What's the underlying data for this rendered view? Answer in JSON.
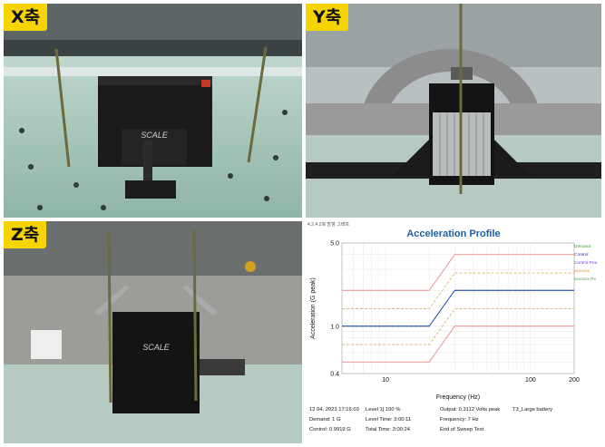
{
  "panels": {
    "x": {
      "label": "X축"
    },
    "y": {
      "label": "Y축"
    },
    "z": {
      "label": "Z축"
    }
  },
  "photo": {
    "logo_text": "SCALE"
  },
  "chart": {
    "header_faint": "4.2.4 Z축 방향 그래프",
    "title": "Acceleration Profile",
    "legend": [
      {
        "label": "Demand",
        "color": "#2ca02c"
      },
      {
        "label": "Control",
        "color": "#1f3fbf"
      },
      {
        "label": "Control Pea",
        "color": "#7c3aed"
      },
      {
        "label": "xxxxxxx",
        "color": "#d98c3c"
      },
      {
        "label": "xxxxxxx Pe",
        "color": "#5aa05a"
      }
    ],
    "status_lines": {
      "date": "12 04, 2023 17:16:03",
      "level": "Level 1] 100 %",
      "output": "Output: 0.3112 Volts peak",
      "test": "T3_Large battery",
      "demand": "Demand: 1 G",
      "level_time": "Level Time: 3:00:11",
      "frequency": "Frequency: 7 Hz",
      "control": "Control: 0.9919 G",
      "total_time": "Total Time: 3:00:24",
      "end": "End of Sweep Test"
    }
  },
  "chart_data": {
    "type": "line",
    "title": "Acceleration Profile",
    "xlabel": "Frequency (Hz)",
    "ylabel": "Acceleration (G peak)",
    "x_scale": "log",
    "y_scale": "log",
    "xlim": [
      5,
      200
    ],
    "ylim": [
      0.4,
      5.0
    ],
    "x_ticks": [
      "10",
      "100",
      "200"
    ],
    "y_ticks": [
      "5.0",
      "1.0",
      "0.4"
    ],
    "x": [
      5,
      20,
      30,
      200
    ],
    "series": [
      {
        "name": "Demand",
        "color": "#2ca02c",
        "dash": "dashed",
        "values": [
          1.0,
          1.0,
          2.0,
          2.0
        ]
      },
      {
        "name": "Control",
        "color": "#1f3fbf",
        "dash": "solid",
        "values": [
          1.0,
          1.0,
          2.0,
          2.0
        ]
      },
      {
        "name": "",
        "color": "#e68a8a",
        "dash": "solid",
        "values": [
          2.0,
          2.0,
          4.0,
          4.0
        ]
      },
      {
        "name": "",
        "color": "#e68a8a",
        "dash": "solid",
        "values": [
          0.5,
          0.5,
          1.0,
          1.0
        ]
      },
      {
        "name": "",
        "color": "#d9b36a",
        "dash": "dashed",
        "values": [
          1.4,
          1.4,
          2.8,
          2.8
        ]
      },
      {
        "name": "",
        "color": "#d9b36a",
        "dash": "dashed",
        "values": [
          0.7,
          0.7,
          1.4,
          1.4
        ]
      }
    ]
  }
}
